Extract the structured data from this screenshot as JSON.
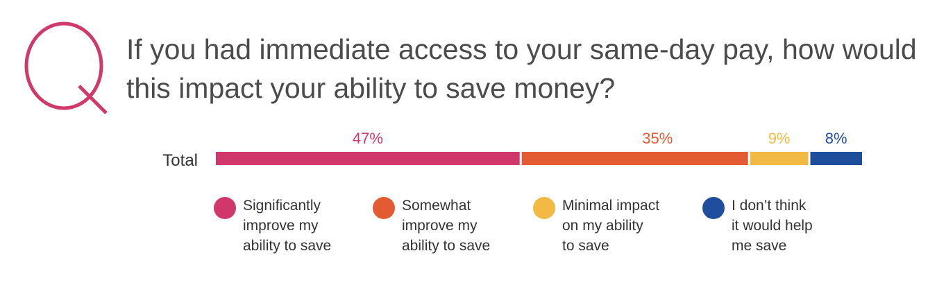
{
  "question": {
    "mark": "Q",
    "text": "If you had immediate access to your same-day pay, how would this impact your ability to save money?",
    "accent_color": "#cf3a6b"
  },
  "chart_data": {
    "type": "bar",
    "orientation": "horizontal-stacked",
    "categories": [
      "Total"
    ],
    "series": [
      {
        "name": "Significantly improve my ability to save",
        "values": [
          47
        ],
        "label": "47%",
        "color": "#d0386b"
      },
      {
        "name": "Somewhat improve my ability to save",
        "values": [
          35
        ],
        "label": "35%",
        "color": "#e35b33"
      },
      {
        "name": "Minimal impact on my ability to save",
        "values": [
          9
        ],
        "label": "9%",
        "color": "#f2b944"
      },
      {
        "name": "I don’t think it would help me save",
        "values": [
          8
        ],
        "label": "8%",
        "color": "#1f4e9c"
      }
    ],
    "title": "",
    "xlabel": "",
    "ylabel": "",
    "legend_position": "bottom",
    "grid": false
  },
  "legend": [
    {
      "lines": [
        "Significantly",
        "improve my",
        "ability to save"
      ],
      "color": "#d0386b"
    },
    {
      "lines": [
        "Somewhat",
        "improve my",
        "ability to save"
      ],
      "color": "#e35b33"
    },
    {
      "lines": [
        "Minimal impact",
        "on my ability",
        "to save"
      ],
      "color": "#f2b944"
    },
    {
      "lines": [
        "I don’t think",
        "it would help",
        "me save"
      ],
      "color": "#1f4e9c"
    }
  ]
}
